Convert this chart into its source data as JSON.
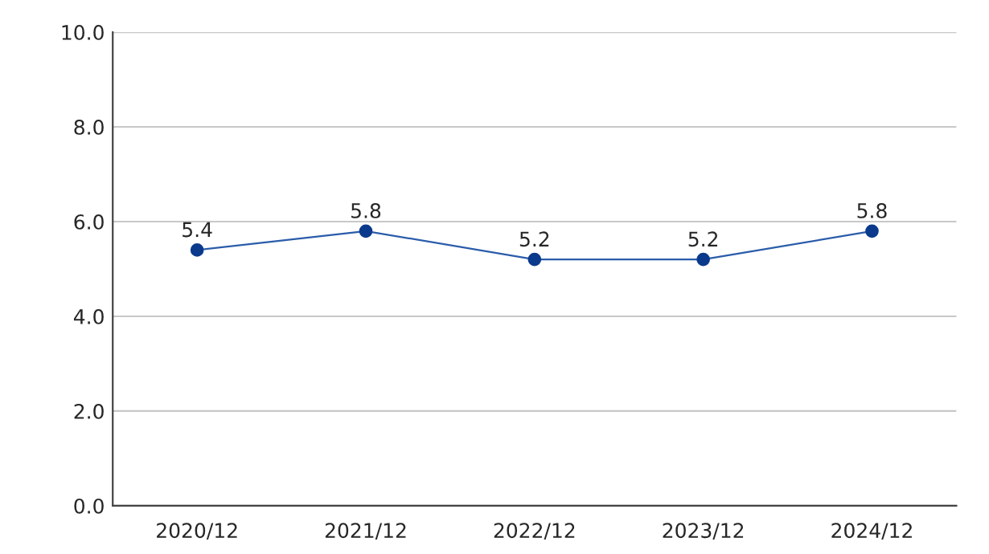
{
  "chart_data": {
    "type": "line",
    "categories": [
      "2020/12",
      "2021/12",
      "2022/12",
      "2023/12",
      "2024/12"
    ],
    "series": [
      {
        "color": "#2a5caa",
        "values": [
          5.4,
          5.8,
          5.2,
          5.2,
          5.8
        ]
      }
    ],
    "ylim": [
      0,
      10
    ],
    "yticks": [
      {
        "value": 0,
        "label": "0.0"
      },
      {
        "value": 2,
        "label": "2.0"
      },
      {
        "value": 4,
        "label": "4.0"
      },
      {
        "value": 6,
        "label": "6.0"
      },
      {
        "value": 8,
        "label": "8.0"
      },
      {
        "value": 10,
        "label": "10.0"
      }
    ],
    "grid": "y",
    "marker": "circle",
    "line_style": "solid",
    "data_labels": true
  }
}
